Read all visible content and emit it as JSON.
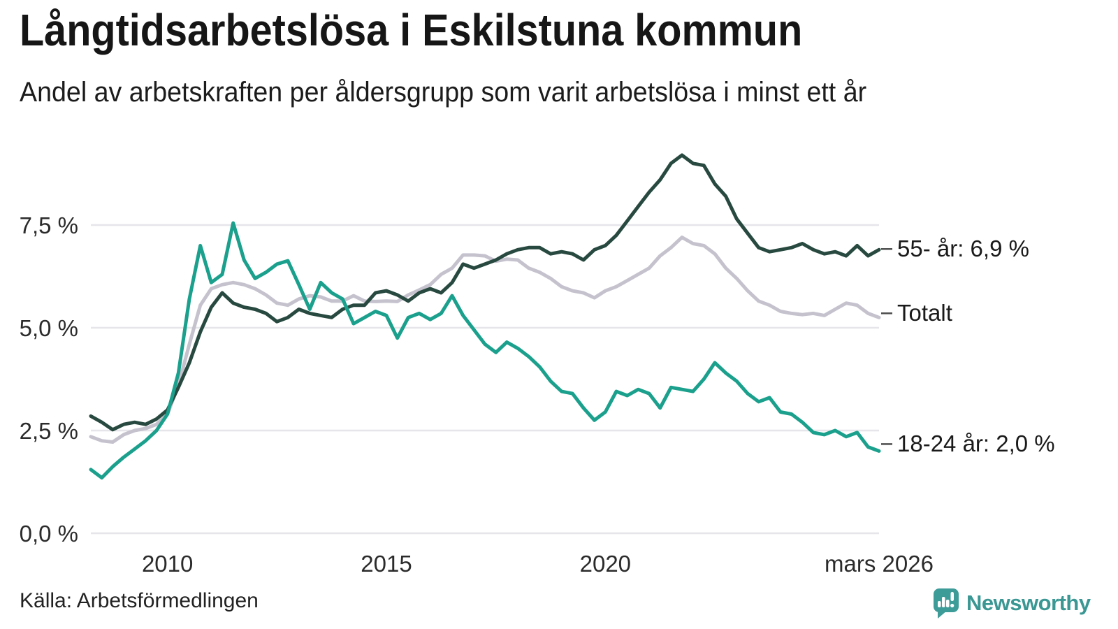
{
  "header": {
    "title": "Långtidsarbetslösa i Eskilstuna kommun",
    "subtitle": "Andel av arbetskraften per åldersgrupp som varit arbetslösa i minst ett år"
  },
  "footer": {
    "source": "Källa: Arbetsförmedlingen",
    "logo_text": "Newsworthy"
  },
  "colors": {
    "background": "#ffffff",
    "grid": "#e6e5e9",
    "title_text": "#161616",
    "axis_text": "#2b2b2b",
    "tick_dash": "#4d4d4d",
    "line_55": "#27493f",
    "line_total": "#c5c2ce",
    "line_18_24": "#1aa08c",
    "logo_bubble": "#3e9c98",
    "logo_text": "#3a9793"
  },
  "chart_data": {
    "type": "line",
    "title": "Långtidsarbetslösa i Eskilstuna kommun",
    "subtitle": "Andel av arbetskraften per åldersgrupp som varit arbetslösa i minst ett år",
    "unit": "% av arbetskraften",
    "xlabel": "",
    "ylabel": "",
    "ylim": [
      0,
      9.7
    ],
    "xlim": [
      2008.25,
      2026.25
    ],
    "grid": true,
    "legend_position": "end-of-line",
    "x": [
      2008.25,
      2008.5,
      2008.75,
      2009,
      2009.25,
      2009.5,
      2009.75,
      2010,
      2010.25,
      2010.5,
      2010.75,
      2011,
      2011.25,
      2011.5,
      2011.75,
      2012,
      2012.25,
      2012.5,
      2012.75,
      2013,
      2013.25,
      2013.5,
      2013.75,
      2014,
      2014.25,
      2014.5,
      2014.75,
      2015,
      2015.25,
      2015.5,
      2015.75,
      2016,
      2016.25,
      2016.5,
      2016.75,
      2017,
      2017.25,
      2017.5,
      2017.75,
      2018,
      2018.25,
      2018.5,
      2018.75,
      2019,
      2019.25,
      2019.5,
      2019.75,
      2020,
      2020.25,
      2020.5,
      2020.75,
      2021,
      2021.25,
      2021.5,
      2021.75,
      2022,
      2022.25,
      2022.5,
      2022.75,
      2023,
      2023.25,
      2023.5,
      2023.75,
      2024,
      2024.25,
      2024.5,
      2024.75,
      2025,
      2025.25,
      2025.5,
      2025.75,
      2026,
      2026.25
    ],
    "series": [
      {
        "name": "Totalt",
        "end_label": "Totalt",
        "color": "#c5c2ce",
        "values": [
          2.35,
          2.25,
          2.22,
          2.4,
          2.5,
          2.55,
          2.65,
          2.9,
          3.6,
          4.6,
          5.55,
          5.95,
          6.05,
          6.1,
          6.05,
          5.95,
          5.8,
          5.6,
          5.55,
          5.7,
          5.78,
          5.75,
          5.65,
          5.65,
          5.78,
          5.65,
          5.64,
          5.65,
          5.64,
          5.8,
          5.92,
          6.05,
          6.3,
          6.45,
          6.77,
          6.77,
          6.75,
          6.62,
          6.67,
          6.65,
          6.45,
          6.35,
          6.2,
          6.0,
          5.9,
          5.85,
          5.73,
          5.9,
          6.0,
          6.15,
          6.3,
          6.45,
          6.75,
          6.95,
          7.2,
          7.05,
          7.0,
          6.8,
          6.45,
          6.2,
          5.9,
          5.65,
          5.55,
          5.4,
          5.35,
          5.32,
          5.35,
          5.3,
          5.45,
          5.6,
          5.55,
          5.35,
          5.25
        ]
      },
      {
        "name": "55- år",
        "end_label": "55- år: 6,9 %",
        "color": "#27493f",
        "values": [
          2.85,
          2.7,
          2.52,
          2.65,
          2.7,
          2.65,
          2.78,
          3.0,
          3.55,
          4.15,
          4.9,
          5.5,
          5.85,
          5.6,
          5.5,
          5.45,
          5.35,
          5.15,
          5.25,
          5.45,
          5.35,
          5.3,
          5.25,
          5.45,
          5.55,
          5.55,
          5.85,
          5.9,
          5.8,
          5.65,
          5.85,
          5.95,
          5.85,
          6.1,
          6.55,
          6.45,
          6.55,
          6.65,
          6.8,
          6.9,
          6.95,
          6.95,
          6.8,
          6.85,
          6.8,
          6.65,
          6.9,
          7.0,
          7.25,
          7.6,
          7.95,
          8.3,
          8.6,
          9.0,
          9.2,
          9.0,
          8.95,
          8.5,
          8.2,
          7.65,
          7.3,
          6.95,
          6.85,
          6.9,
          6.95,
          7.05,
          6.9,
          6.8,
          6.85,
          6.75,
          7.0,
          6.75,
          6.9
        ]
      },
      {
        "name": "18-24 år",
        "end_label": "18-24 år: 2,0 %",
        "color": "#1aa08c",
        "values": [
          1.55,
          1.35,
          1.62,
          1.85,
          2.05,
          2.25,
          2.5,
          2.9,
          3.9,
          5.7,
          7.0,
          6.1,
          6.3,
          7.55,
          6.65,
          6.2,
          6.35,
          6.55,
          6.63,
          6.05,
          5.45,
          6.1,
          5.85,
          5.7,
          5.1,
          5.25,
          5.4,
          5.3,
          4.75,
          5.25,
          5.35,
          5.2,
          5.35,
          5.78,
          5.3,
          4.95,
          4.6,
          4.4,
          4.65,
          4.5,
          4.3,
          4.05,
          3.7,
          3.45,
          3.4,
          3.05,
          2.75,
          2.95,
          3.45,
          3.35,
          3.5,
          3.4,
          3.05,
          3.55,
          3.5,
          3.45,
          3.75,
          4.15,
          3.9,
          3.7,
          3.4,
          3.2,
          3.3,
          2.95,
          2.9,
          2.7,
          2.45,
          2.4,
          2.5,
          2.35,
          2.45,
          2.1,
          2.0
        ]
      }
    ],
    "y_ticks": [
      {
        "v": 0,
        "label": "0,0 %"
      },
      {
        "v": 2.5,
        "label": "2,5 %"
      },
      {
        "v": 5,
        "label": "5,0 %"
      },
      {
        "v": 7.5,
        "label": "7,5 %"
      }
    ],
    "x_ticks": [
      {
        "t": 2010,
        "label": "2010"
      },
      {
        "t": 2015,
        "label": "2015"
      },
      {
        "t": 2020,
        "label": "2020"
      },
      {
        "t": 2026.25,
        "label": "mars 2026"
      }
    ]
  }
}
